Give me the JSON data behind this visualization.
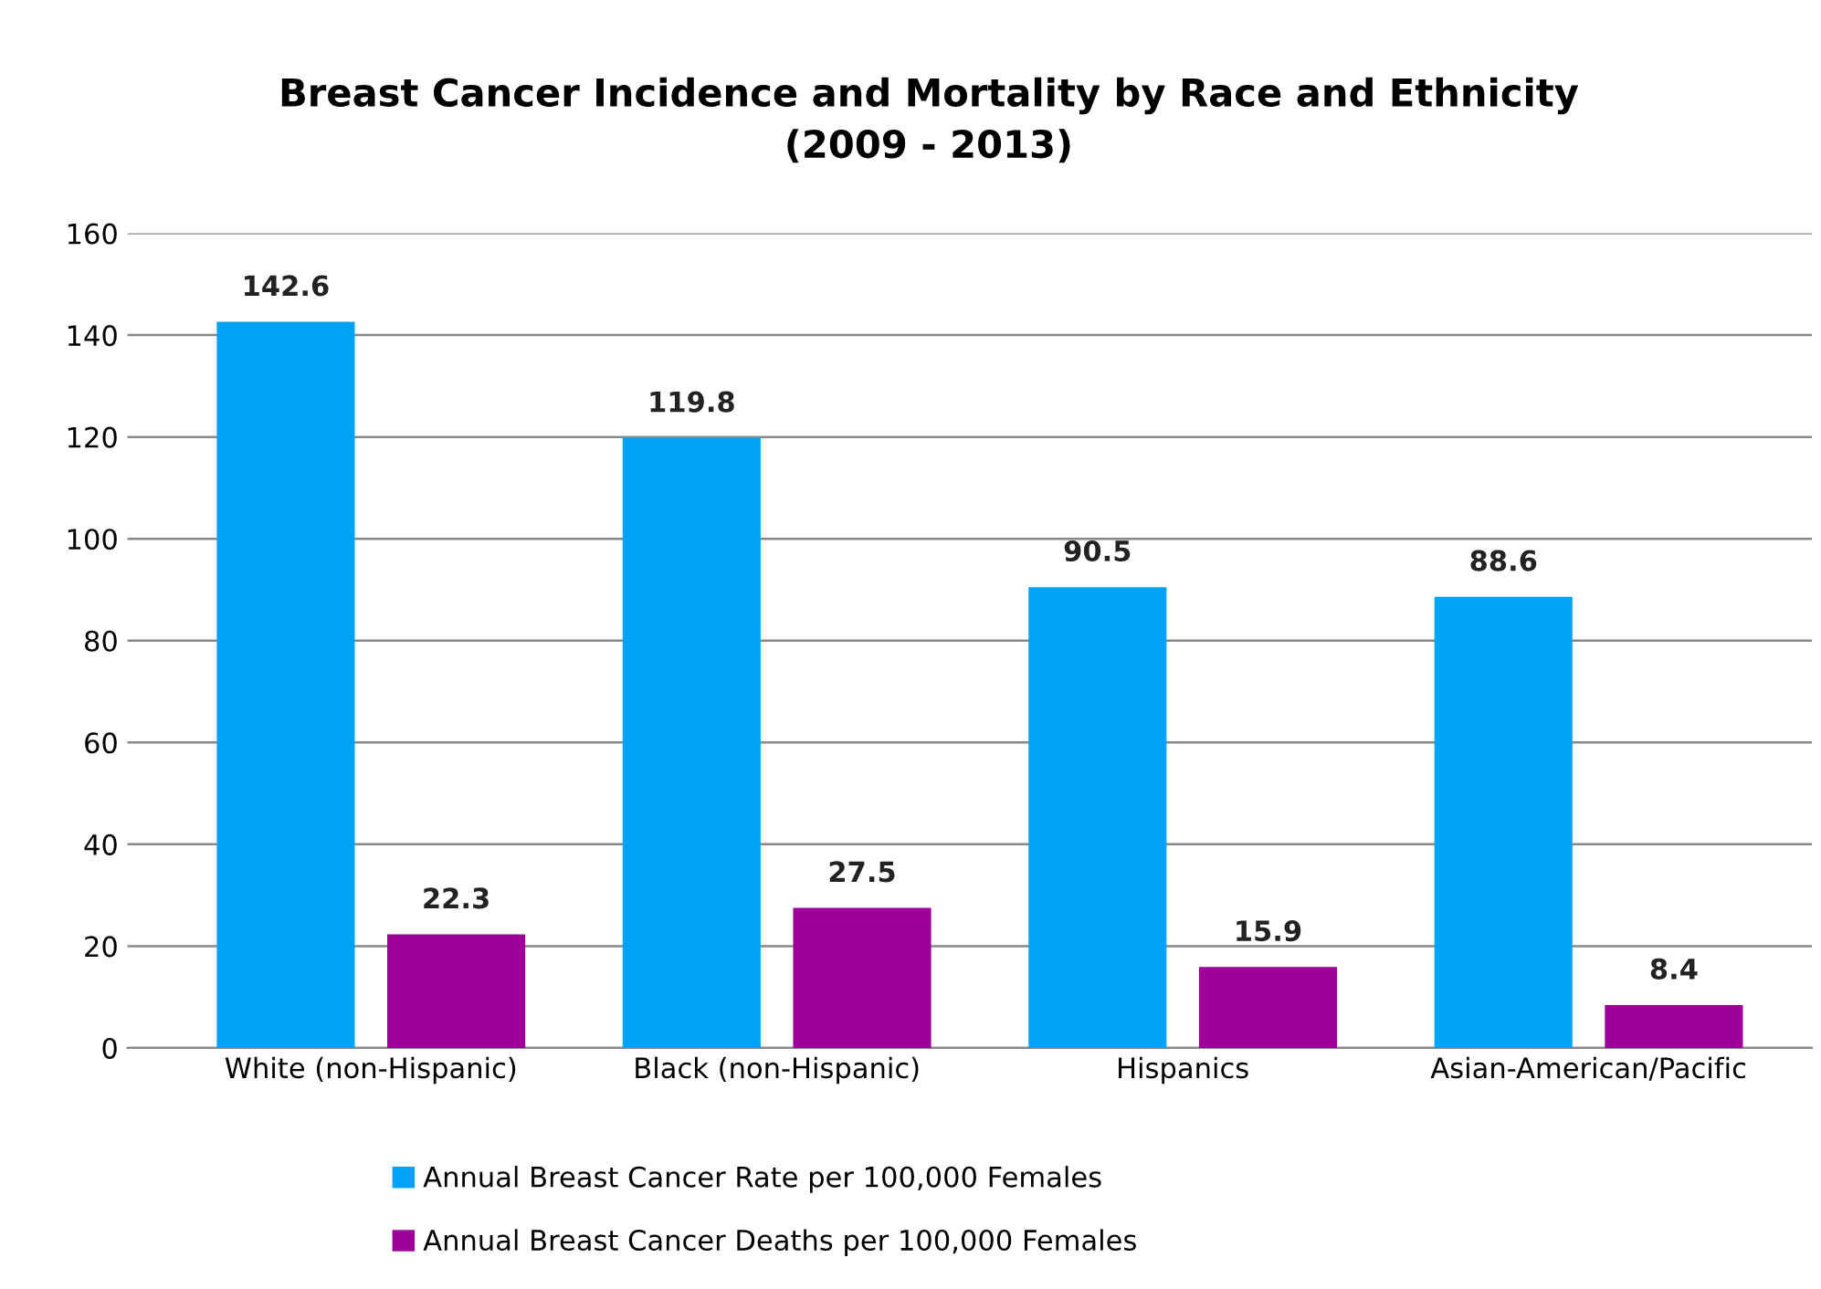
{
  "chart_data": {
    "type": "bar",
    "title": "Breast Cancer Incidence and Mortality by Race and Ethnicity\n(2009 - 2013)",
    "categories": [
      "White (non-Hispanic)",
      "Black (non-Hispanic)",
      "Hispanics",
      "Asian-American/Pacific"
    ],
    "series": [
      {
        "name": "Annual Breast Cancer Rate per 100,000 Females",
        "color": "#00a2f5",
        "values": [
          142.6,
          119.8,
          90.5,
          88.6
        ]
      },
      {
        "name": "Annual Breast Cancer Deaths per 100,000 Females",
        "color": "#9c0099",
        "values": [
          22.3,
          27.5,
          15.9,
          8.4
        ]
      }
    ],
    "ylim": [
      0,
      160
    ],
    "yticks": [
      0,
      20,
      40,
      60,
      80,
      100,
      120,
      140,
      160
    ],
    "grid": "y",
    "legend": "bottom",
    "data_labels": true
  }
}
